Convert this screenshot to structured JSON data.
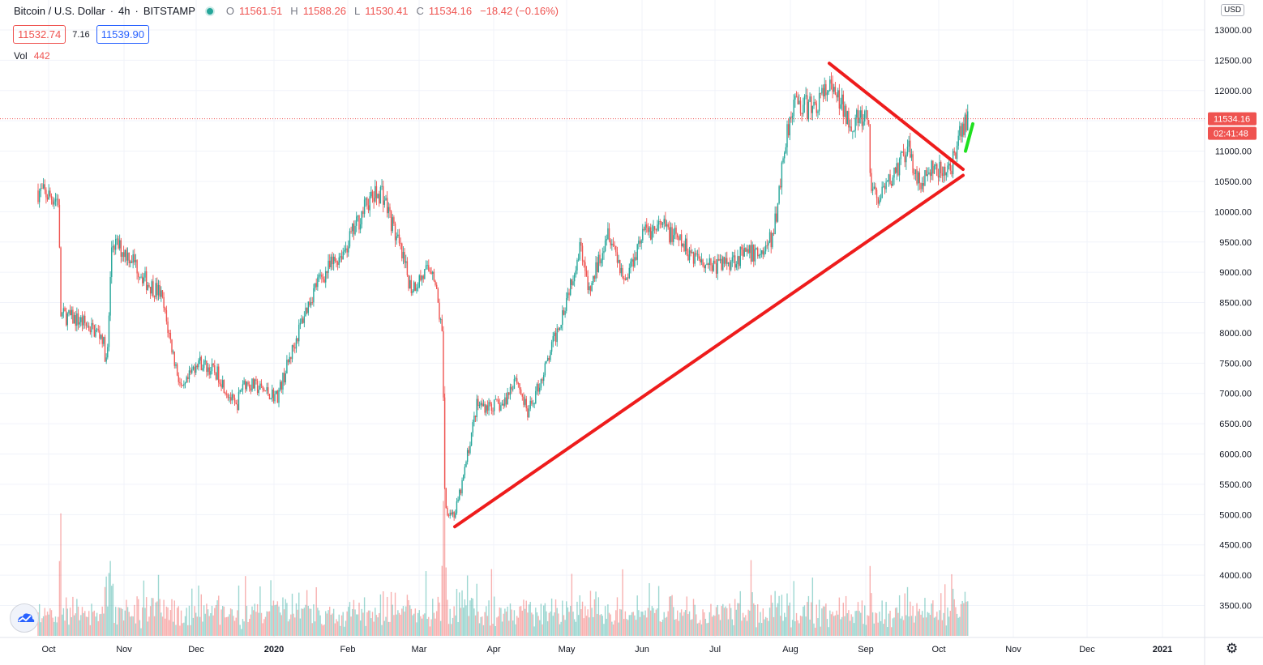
{
  "header": {
    "symbol": "Bitcoin / U.S. Dollar",
    "interval": "4h",
    "exchange": "BITSTAMP",
    "ohlc": {
      "o_label": "O",
      "o": "11561.51",
      "h_label": "H",
      "h": "11588.26",
      "l_label": "L",
      "l": "11530.41",
      "c_label": "C",
      "c": "11534.16",
      "change": "−18.42 (−0.16%)"
    },
    "bid": "11532.74",
    "spread": "7.16",
    "ask": "11539.90",
    "vol_label": "Vol",
    "vol_value": "442",
    "currency": "USD"
  },
  "colors": {
    "up": "#26a69a",
    "down": "#ef5350",
    "drawing_red": "#ee1c1c",
    "drawing_green": "#1fe01f",
    "price_badge": "#ef5350"
  },
  "chart_data": {
    "type": "candlestick",
    "ylim": [
      3000,
      13600
    ],
    "y_ticks": [
      "3500.00",
      "4000.00",
      "4500.00",
      "5000.00",
      "5500.00",
      "6000.00",
      "6500.00",
      "7000.00",
      "7500.00",
      "8000.00",
      "8500.00",
      "9000.00",
      "9500.00",
      "10000.00",
      "10500.00",
      "11000.00",
      "11500.00",
      "12000.00",
      "12500.00",
      "13000.00"
    ],
    "x_ticks": [
      "Oct",
      "Nov",
      "Dec",
      "2020",
      "Feb",
      "Mar",
      "Apr",
      "May",
      "Jun",
      "Jul",
      "Aug",
      "Sep",
      "Oct",
      "Nov",
      "Dec",
      "2021"
    ],
    "last_price": "11534.16",
    "countdown": "02:41:48",
    "price_path": [
      [
        "2019-09-26",
        10350
      ],
      [
        "2019-10-05",
        10200
      ],
      [
        "2019-10-06",
        8300
      ],
      [
        "2019-10-14",
        8200
      ],
      [
        "2019-10-23",
        7950
      ],
      [
        "2019-10-25",
        7450
      ],
      [
        "2019-10-27",
        9500
      ],
      [
        "2019-11-04",
        9250
      ],
      [
        "2019-11-10",
        8850
      ],
      [
        "2019-11-16",
        8650
      ],
      [
        "2019-11-22",
        7500
      ],
      [
        "2019-11-25",
        7000
      ],
      [
        "2019-12-01",
        7550
      ],
      [
        "2019-12-10",
        7300
      ],
      [
        "2019-12-17",
        6750
      ],
      [
        "2019-12-20",
        7200
      ],
      [
        "2020-01-03",
        6950
      ],
      [
        "2020-01-14",
        8300
      ],
      [
        "2020-01-19",
        8800
      ],
      [
        "2020-01-31",
        9400
      ],
      [
        "2020-02-09",
        10150
      ],
      [
        "2020-02-15",
        10350
      ],
      [
        "2020-02-20",
        9700
      ],
      [
        "2020-02-27",
        8750
      ],
      [
        "2020-03-07",
        9100
      ],
      [
        "2020-03-11",
        7900
      ],
      [
        "2020-03-12",
        5100
      ],
      [
        "2020-03-16",
        5000
      ],
      [
        "2020-03-19",
        5500
      ],
      [
        "2020-03-25",
        6800
      ],
      [
        "2020-04-05",
        6800
      ],
      [
        "2020-04-10",
        7300
      ],
      [
        "2020-04-15",
        6650
      ],
      [
        "2020-04-23",
        7500
      ],
      [
        "2020-04-29",
        8300
      ],
      [
        "2020-05-07",
        9500
      ],
      [
        "2020-05-10",
        8600
      ],
      [
        "2020-05-18",
        9750
      ],
      [
        "2020-05-25",
        8850
      ],
      [
        "2020-06-01",
        9650
      ],
      [
        "2020-06-10",
        9750
      ],
      [
        "2020-06-20",
        9350
      ],
      [
        "2020-07-01",
        9100
      ],
      [
        "2020-07-10",
        9250
      ],
      [
        "2020-07-21",
        9350
      ],
      [
        "2020-07-25",
        9600
      ],
      [
        "2020-07-30",
        11200
      ],
      [
        "2020-08-02",
        11800
      ],
      [
        "2020-08-10",
        11700
      ],
      [
        "2020-08-17",
        12050
      ],
      [
        "2020-08-26",
        11500
      ],
      [
        "2020-09-02",
        11500
      ],
      [
        "2020-09-03",
        10400
      ],
      [
        "2020-09-07",
        10200
      ],
      [
        "2020-09-15",
        10800
      ],
      [
        "2020-09-19",
        11000
      ],
      [
        "2020-09-23",
        10450
      ],
      [
        "2020-09-29",
        10700
      ],
      [
        "2020-10-03",
        10600
      ],
      [
        "2020-10-08",
        10900
      ],
      [
        "2020-10-10",
        11300
      ],
      [
        "2020-10-13",
        11534
      ]
    ],
    "annotations": [
      {
        "type": "trendline",
        "color": "red",
        "from": [
          "2020-03-16",
          4800
        ],
        "to": [
          "2020-10-11",
          10600
        ]
      },
      {
        "type": "trendline",
        "color": "red",
        "from": [
          "2020-08-17",
          12450
        ],
        "to": [
          "2020-10-11",
          10700
        ]
      },
      {
        "type": "trendline",
        "color": "green",
        "from": [
          "2020-10-12",
          11000
        ],
        "to": [
          "2020-10-15",
          11450
        ]
      }
    ],
    "grid": true,
    "volume_pane": true
  }
}
